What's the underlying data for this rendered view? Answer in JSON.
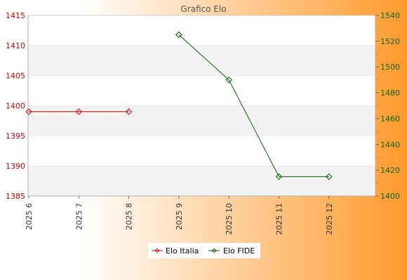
{
  "chart_data": {
    "type": "line",
    "title": "Grafico Elo",
    "categories": [
      "2025 6",
      "2025 7",
      "2025 8",
      "2025 9",
      "2025 10",
      "2025 11",
      "2025 12"
    ],
    "y_left": {
      "ylim": [
        1385,
        1415
      ],
      "ticks": [
        1385,
        1390,
        1395,
        1400,
        1405,
        1410,
        1415
      ]
    },
    "y_right": {
      "ylim": [
        1400,
        1540
      ],
      "ticks": [
        1400,
        1420,
        1440,
        1460,
        1480,
        1500,
        1520,
        1540
      ]
    },
    "grid": true,
    "legend_position": "bottom-center",
    "series": [
      {
        "name": "Elo Italia",
        "axis": "left",
        "color": "#dd0000",
        "values": [
          1399,
          1399,
          1399,
          null,
          null,
          null,
          null
        ]
      },
      {
        "name": "Elo FIDE",
        "axis": "right",
        "color": "#006600",
        "values": [
          null,
          null,
          null,
          1525,
          1490,
          1415,
          1415
        ]
      }
    ],
    "colors": {
      "left_axis": "#dd0000",
      "right_axis": "#006600"
    }
  }
}
